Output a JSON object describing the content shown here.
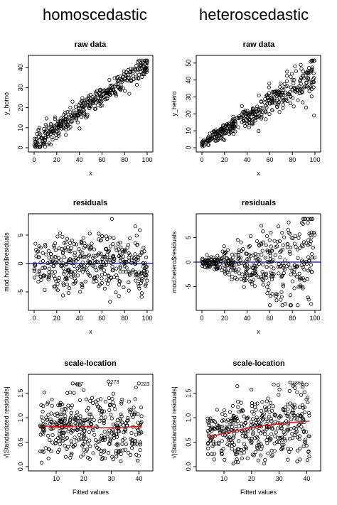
{
  "headings": {
    "left": "homoscedastic",
    "right": "heteroscedastic"
  },
  "chart_data": [
    {
      "id": "homo-raw",
      "type": "scatter",
      "title": "raw data",
      "xlabel": "x",
      "ylabel": "y_homo",
      "xlim": [
        0,
        100
      ],
      "ylim": [
        0,
        44
      ],
      "xticks": [
        0,
        20,
        40,
        60,
        80,
        100
      ],
      "yticks": [
        0,
        10,
        20,
        30,
        40
      ],
      "trend": {
        "intercept": 2,
        "slope": 0.4
      },
      "noise": 2.5,
      "hetero": false,
      "hline": null,
      "annotations": []
    },
    {
      "id": "hetero-raw",
      "type": "scatter",
      "title": "raw data",
      "xlabel": "x",
      "ylabel": "y_hetero",
      "xlim": [
        0,
        100
      ],
      "ylim": [
        0,
        52
      ],
      "xticks": [
        0,
        20,
        40,
        60,
        80,
        100
      ],
      "yticks": [
        0,
        10,
        20,
        30,
        40,
        50
      ],
      "trend": {
        "intercept": 2,
        "slope": 0.42
      },
      "noise": 1.0,
      "hetero": true,
      "hline": null,
      "annotations": []
    },
    {
      "id": "homo-resid",
      "type": "scatter",
      "title": "residuals",
      "xlabel": "x",
      "ylabel": "mod.homo$residuals",
      "xlim": [
        0,
        100
      ],
      "ylim": [
        -7.5,
        8
      ],
      "xticks": [
        0,
        20,
        40,
        60,
        80,
        100
      ],
      "yticks": [
        -5,
        0,
        5
      ],
      "trend": {
        "intercept": 0,
        "slope": 0
      },
      "noise": 2.5,
      "hetero": false,
      "hline": {
        "y": 0,
        "color": "#0000cc"
      },
      "annotations": []
    },
    {
      "id": "hetero-resid",
      "type": "scatter",
      "title": "residuals",
      "xlabel": "x",
      "ylabel": "mod.hetero$residuals",
      "xlim": [
        0,
        100
      ],
      "ylim": [
        -9,
        9
      ],
      "xticks": [
        0,
        20,
        40,
        60,
        80,
        100
      ],
      "yticks": [
        -5,
        0,
        5
      ],
      "trend": {
        "intercept": 0,
        "slope": 0
      },
      "noise": 0.3,
      "hetero": true,
      "hline": {
        "y": 0,
        "color": "#0000cc"
      },
      "annotations": []
    },
    {
      "id": "homo-scale",
      "type": "scatter",
      "title": "scale-location",
      "xlabel": "Fitted values",
      "ylabel": "√|Standardized residuals|",
      "xlim": [
        2,
        43
      ],
      "ylim": [
        0,
        1.8
      ],
      "xticks": [
        10,
        20,
        30,
        40
      ],
      "yticks": [
        0.0,
        0.5,
        1.0,
        1.5
      ],
      "scale": true,
      "hetero": false,
      "smooth": {
        "color": "#ff0000",
        "y": [
          0.83,
          0.82,
          0.83,
          0.8,
          0.8,
          0.83
        ]
      },
      "hline": null,
      "annotations": [
        {
          "label": "427",
          "x": 16,
          "y": 1.7
        },
        {
          "label": "273",
          "x": 29,
          "y": 1.74
        },
        {
          "label": "223",
          "x": 40,
          "y": 1.7
        }
      ]
    },
    {
      "id": "hetero-scale",
      "type": "scatter",
      "title": "scale-location",
      "xlabel": "Fitted values",
      "ylabel": "√|Standardized residuals|",
      "xlim": [
        2,
        43
      ],
      "ylim": [
        0,
        1.8
      ],
      "xticks": [
        10,
        20,
        30,
        40
      ],
      "yticks": [
        0.0,
        0.5,
        1.0,
        1.5
      ],
      "scale": true,
      "hetero": true,
      "smooth": {
        "color": "#ff0000",
        "y": [
          0.6,
          0.7,
          0.79,
          0.85,
          0.9,
          0.93
        ]
      },
      "hline": null,
      "annotations": [
        {
          "label": "1860",
          "x": 34,
          "y": 1.72
        }
      ]
    }
  ]
}
